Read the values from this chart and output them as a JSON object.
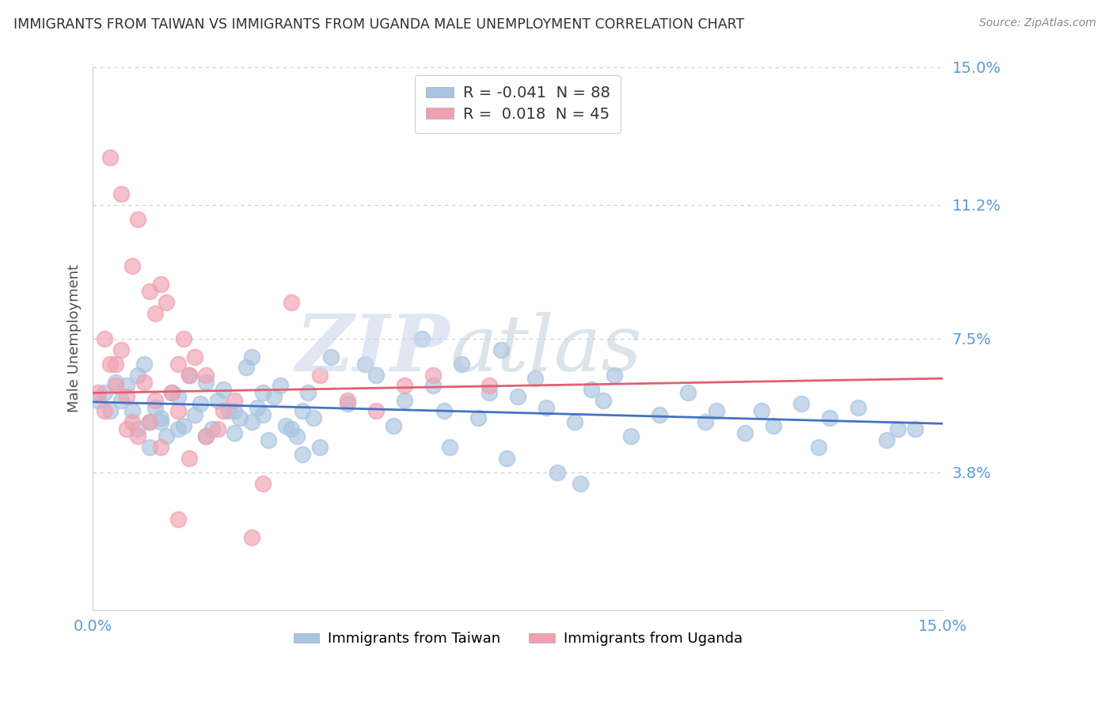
{
  "title": "IMMIGRANTS FROM TAIWAN VS IMMIGRANTS FROM UGANDA MALE UNEMPLOYMENT CORRELATION CHART",
  "source": "Source: ZipAtlas.com",
  "ylabel": "Male Unemployment",
  "x_min": 0.0,
  "x_max": 15.0,
  "y_min": 0.0,
  "y_max": 15.0,
  "y_ticks": [
    3.8,
    7.5,
    11.2,
    15.0
  ],
  "x_ticks": [
    0.0,
    15.0
  ],
  "taiwan_R": -0.041,
  "taiwan_N": 88,
  "uganda_R": 0.018,
  "uganda_N": 45,
  "taiwan_color": "#a8c4e0",
  "uganda_color": "#f0a0b0",
  "taiwan_line_color": "#4472c4",
  "uganda_line_color": "#e06070",
  "grid_color": "#cccccc",
  "title_color": "#404040",
  "axis_label_color": "#5b9bd5",
  "legend_text_color": "#333333",
  "legend_number_color": "#5b9bd5",
  "taiwan_points": [
    [
      0.5,
      5.8
    ],
    [
      0.6,
      6.2
    ],
    [
      0.7,
      5.5
    ],
    [
      0.8,
      5.0
    ],
    [
      0.9,
      6.8
    ],
    [
      1.0,
      5.2
    ],
    [
      1.1,
      5.6
    ],
    [
      1.2,
      5.3
    ],
    [
      1.3,
      4.8
    ],
    [
      1.4,
      6.0
    ],
    [
      1.5,
      5.9
    ],
    [
      1.6,
      5.1
    ],
    [
      1.7,
      6.5
    ],
    [
      1.8,
      5.4
    ],
    [
      1.9,
      5.7
    ],
    [
      2.0,
      6.3
    ],
    [
      2.1,
      5.0
    ],
    [
      2.2,
      5.8
    ],
    [
      2.3,
      6.1
    ],
    [
      2.4,
      5.5
    ],
    [
      2.5,
      4.9
    ],
    [
      2.6,
      5.3
    ],
    [
      2.7,
      6.7
    ],
    [
      2.8,
      5.2
    ],
    [
      2.9,
      5.6
    ],
    [
      3.0,
      5.4
    ],
    [
      3.1,
      4.7
    ],
    [
      3.2,
      5.9
    ],
    [
      3.3,
      6.2
    ],
    [
      3.4,
      5.1
    ],
    [
      3.5,
      5.0
    ],
    [
      3.6,
      4.8
    ],
    [
      3.7,
      5.5
    ],
    [
      3.8,
      6.0
    ],
    [
      3.9,
      5.3
    ],
    [
      4.0,
      4.5
    ],
    [
      4.5,
      5.7
    ],
    [
      5.0,
      6.5
    ],
    [
      5.5,
      5.8
    ],
    [
      5.8,
      7.5
    ],
    [
      6.0,
      6.2
    ],
    [
      6.2,
      5.5
    ],
    [
      6.5,
      6.8
    ],
    [
      6.8,
      5.3
    ],
    [
      7.0,
      6.0
    ],
    [
      7.2,
      7.2
    ],
    [
      7.5,
      5.9
    ],
    [
      7.8,
      6.4
    ],
    [
      8.0,
      5.6
    ],
    [
      8.5,
      5.2
    ],
    [
      8.8,
      6.1
    ],
    [
      9.0,
      5.8
    ],
    [
      9.5,
      4.8
    ],
    [
      10.0,
      5.4
    ],
    [
      10.5,
      6.0
    ],
    [
      11.0,
      5.5
    ],
    [
      11.5,
      4.9
    ],
    [
      12.0,
      5.1
    ],
    [
      12.5,
      5.7
    ],
    [
      13.0,
      5.3
    ],
    [
      13.5,
      5.6
    ],
    [
      14.0,
      4.7
    ],
    [
      14.5,
      5.0
    ],
    [
      0.2,
      6.0
    ],
    [
      0.3,
      5.5
    ],
    [
      0.4,
      6.3
    ],
    [
      1.0,
      4.5
    ],
    [
      1.5,
      5.0
    ],
    [
      2.0,
      4.8
    ],
    [
      2.5,
      5.5
    ],
    [
      3.0,
      6.0
    ],
    [
      0.1,
      5.8
    ],
    [
      0.8,
      6.5
    ],
    [
      1.2,
      5.2
    ],
    [
      4.2,
      7.0
    ],
    [
      6.3,
      4.5
    ],
    [
      8.2,
      3.8
    ],
    [
      8.6,
      3.5
    ],
    [
      9.2,
      6.5
    ],
    [
      10.8,
      5.2
    ],
    [
      11.8,
      5.5
    ],
    [
      12.8,
      4.5
    ],
    [
      14.2,
      5.0
    ],
    [
      4.8,
      6.8
    ],
    [
      7.3,
      4.2
    ],
    [
      5.3,
      5.1
    ],
    [
      3.7,
      4.3
    ],
    [
      2.8,
      7.0
    ]
  ],
  "uganda_points": [
    [
      0.3,
      12.5
    ],
    [
      0.5,
      11.5
    ],
    [
      0.7,
      9.5
    ],
    [
      0.8,
      10.8
    ],
    [
      1.0,
      8.8
    ],
    [
      1.1,
      8.2
    ],
    [
      1.2,
      9.0
    ],
    [
      1.3,
      8.5
    ],
    [
      1.5,
      6.8
    ],
    [
      1.6,
      7.5
    ],
    [
      1.7,
      6.5
    ],
    [
      1.8,
      7.0
    ],
    [
      0.4,
      6.2
    ],
    [
      0.6,
      5.9
    ],
    [
      0.9,
      6.3
    ],
    [
      1.1,
      5.8
    ],
    [
      0.2,
      5.5
    ],
    [
      0.3,
      6.8
    ],
    [
      0.5,
      7.2
    ],
    [
      0.7,
      5.2
    ],
    [
      1.4,
      6.0
    ],
    [
      1.5,
      5.5
    ],
    [
      2.0,
      6.5
    ],
    [
      2.2,
      5.0
    ],
    [
      2.5,
      5.8
    ],
    [
      0.1,
      6.0
    ],
    [
      0.2,
      7.5
    ],
    [
      0.4,
      6.8
    ],
    [
      0.6,
      5.0
    ],
    [
      0.8,
      4.8
    ],
    [
      1.0,
      5.2
    ],
    [
      1.2,
      4.5
    ],
    [
      1.7,
      4.2
    ],
    [
      2.0,
      4.8
    ],
    [
      2.3,
      5.5
    ],
    [
      3.5,
      8.5
    ],
    [
      4.0,
      6.5
    ],
    [
      4.5,
      5.8
    ],
    [
      5.0,
      5.5
    ],
    [
      5.5,
      6.2
    ],
    [
      6.0,
      6.5
    ],
    [
      7.0,
      6.2
    ],
    [
      3.0,
      3.5
    ],
    [
      1.5,
      2.5
    ],
    [
      2.8,
      2.0
    ]
  ],
  "taiwan_line_y_start": 5.75,
  "taiwan_line_y_end": 5.15,
  "uganda_line_y_start": 6.0,
  "uganda_line_y_end": 6.4
}
